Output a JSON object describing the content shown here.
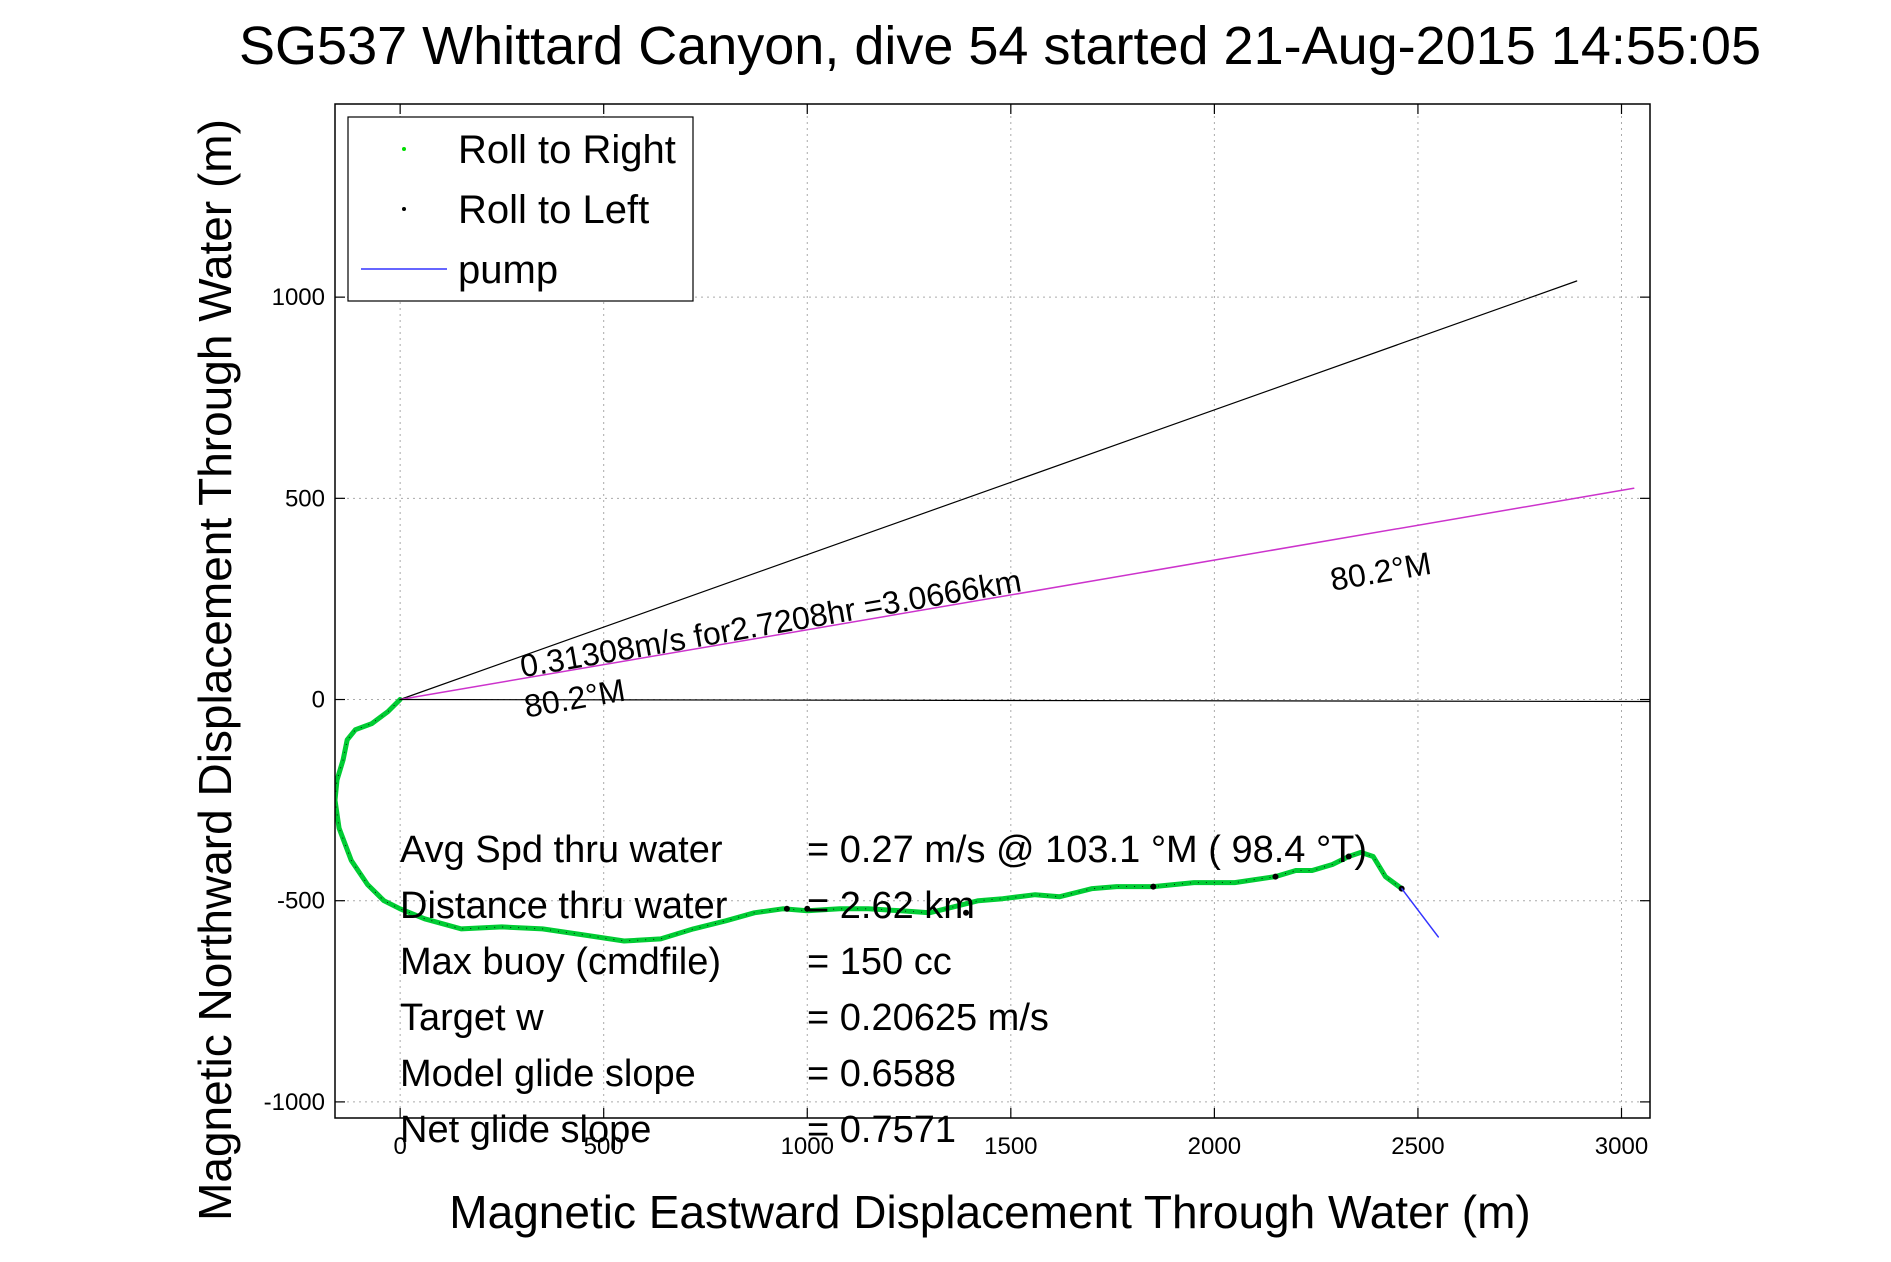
{
  "chart_data": {
    "type": "line",
    "title": "SG537 Whittard Canyon, dive 54 started 21-Aug-2015 14:55:05",
    "xlabel": "Magnetic Eastward Displacement Through Water (m)",
    "ylabel": "Magnetic Northward Displacement Through Water (m)",
    "xlim": [
      -160,
      3070
    ],
    "ylim": [
      -1040,
      1480
    ],
    "xticks": [
      0,
      500,
      1000,
      1500,
      2000,
      2500,
      3000
    ],
    "yticks": [
      -1000,
      -500,
      0,
      500,
      1000
    ],
    "grid": true,
    "legend_position": "top-left",
    "legend": [
      {
        "label": "Roll to Right",
        "marker": "dot",
        "color": "#00dd00"
      },
      {
        "label": "Roll to Left",
        "marker": "dot",
        "color": "#000000"
      },
      {
        "label": "pump",
        "marker": "line",
        "color": "#3333ff"
      }
    ],
    "series": [
      {
        "name": "Roll to Right",
        "color": "#00cc33",
        "x": [
          0,
          -30,
          -70,
          -110,
          -130,
          -140,
          -155,
          -160,
          -150,
          -120,
          -80,
          -40,
          0,
          60,
          150,
          250,
          350,
          450,
          550,
          640,
          720,
          800,
          870,
          940,
          1000,
          1080,
          1150,
          1230,
          1300,
          1360,
          1420,
          1480,
          1560,
          1620,
          1700,
          1760,
          1850,
          1950,
          2050,
          2150,
          2200,
          2240,
          2290,
          2330,
          2360,
          2390,
          2420,
          2460
        ],
        "y": [
          0,
          -30,
          -60,
          -75,
          -100,
          -150,
          -200,
          -250,
          -320,
          -400,
          -460,
          -500,
          -520,
          -545,
          -570,
          -565,
          -570,
          -585,
          -600,
          -595,
          -570,
          -550,
          -530,
          -520,
          -525,
          -520,
          -520,
          -525,
          -530,
          -515,
          -500,
          -495,
          -485,
          -490,
          -470,
          -465,
          -465,
          -455,
          -455,
          -440,
          -425,
          -425,
          -410,
          -390,
          -380,
          -390,
          -440,
          -470
        ]
      },
      {
        "name": "Roll to Left",
        "color": "#000000",
        "x": [
          950,
          1000,
          1390,
          1850,
          2150,
          2330,
          2460
        ],
        "y": [
          -520,
          -520,
          -530,
          -465,
          -440,
          -390,
          -470
        ]
      },
      {
        "name": "pump",
        "color": "#3333ff",
        "x": [
          2460,
          2550
        ],
        "y": [
          -470,
          -590
        ]
      },
      {
        "name": "",
        "color": "#000000",
        "x": [
          0,
          2890
        ],
        "y": [
          0,
          1040
        ]
      },
      {
        "name": "",
        "color": "#cc33cc",
        "x": [
          0,
          3030
        ],
        "y": [
          0,
          525
        ]
      },
      {
        "name": "",
        "color": "#000000",
        "x": [
          0,
          3070
        ],
        "y": [
          0,
          -5
        ]
      }
    ],
    "annotations": [
      {
        "text": "0.31308m/s for2.7208hr =3.0666km",
        "x": 300,
        "y": 55,
        "rotate": -9.8
      },
      {
        "text": "80.2°M",
        "x": 310,
        "y": -45,
        "rotate": -9.8
      },
      {
        "text": "80.2°M",
        "x": 2290,
        "y": 270,
        "rotate": -9.8
      }
    ],
    "stats": [
      {
        "label": "Avg Spd thru water",
        "value": "=  0.27 m/s @ 103.1 °M ( 98.4 °T)"
      },
      {
        "label": "Distance thru water",
        "value": "=  2.62 km"
      },
      {
        "label": "Max buoy (cmdfile)",
        "value": "= 150 cc"
      },
      {
        "label": "Target w",
        "value": "= 0.20625 m/s"
      },
      {
        "label": "Model glide slope",
        "value": "= 0.6588"
      },
      {
        "label": "Net glide slope",
        "value": "= 0.7571"
      }
    ]
  }
}
